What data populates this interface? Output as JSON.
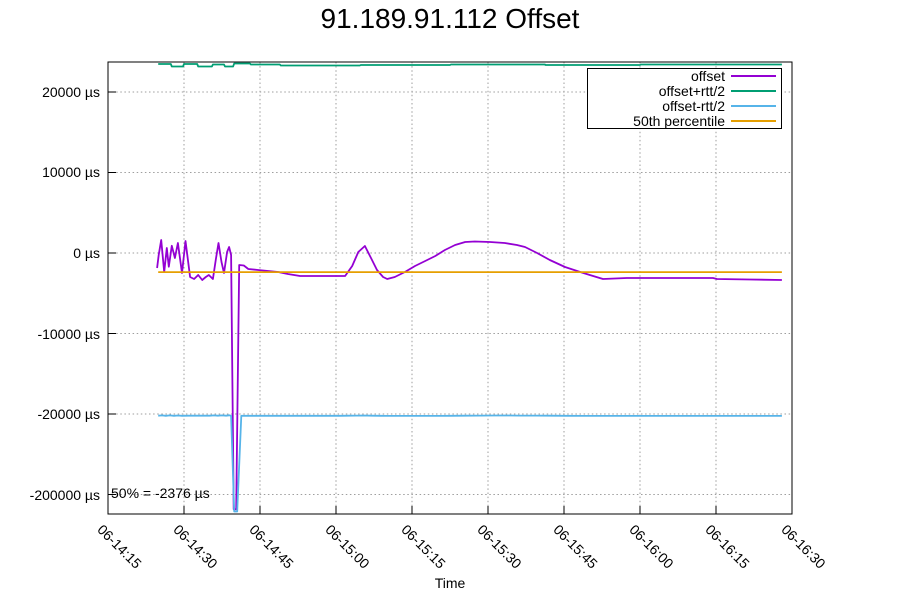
{
  "title": "91.189.91.112 Offset",
  "annotation": "50% = -2376 µs",
  "x_axis_title": "Time",
  "legend": [
    {
      "label": "offset",
      "color": "#9400d3"
    },
    {
      "label": "offset+rtt/2",
      "color": "#009e73"
    },
    {
      "label": "offset-rtt/2",
      "color": "#56b4e9"
    },
    {
      "label": "50th percentile",
      "color": "#e69f00"
    }
  ],
  "colors": {
    "offset": "#9400d3",
    "offset_plus_rtt": "#009e73",
    "offset_minus_rtt": "#56b4e9",
    "percentile": "#e69f00",
    "grid": "#9e9e9e",
    "border": "#000000",
    "background": "#ffffff",
    "text": "#000000"
  },
  "chart_data": {
    "type": "line",
    "title": "91.189.91.112 Offset",
    "xlabel": "Time",
    "ylabel": "",
    "y_unit": "µs",
    "x_unit": "minutes after 06-14:15",
    "grid": true,
    "legend_position": "top-right",
    "annotations": [
      "50% = -2376 µs"
    ],
    "x_ticks": [
      {
        "m": 0,
        "label": "06-14:15"
      },
      {
        "m": 15,
        "label": "06-14:30"
      },
      {
        "m": 30,
        "label": "06-14:45"
      },
      {
        "m": 45,
        "label": "06-15:00"
      },
      {
        "m": 60,
        "label": "06-15:15"
      },
      {
        "m": 75,
        "label": "06-15:30"
      },
      {
        "m": 90,
        "label": "06-15:45"
      },
      {
        "m": 105,
        "label": "06-16:00"
      },
      {
        "m": 120,
        "label": "06-16:15"
      },
      {
        "m": 135,
        "label": "06-16:30"
      }
    ],
    "y_ticks": [
      {
        "v": 20000,
        "label": "20000 µs"
      },
      {
        "v": 10000,
        "label": "10000 µs"
      },
      {
        "v": 0,
        "label": "0 µs"
      },
      {
        "v": -10000,
        "label": "-10000 µs"
      },
      {
        "v": -20000,
        "label": "-20000 µs"
      },
      {
        "v": -200000,
        "label": "-200000 µs"
      }
    ],
    "y_scale_note": "linear from 20000 to -20000 µs, compressed segment from -20000 to -200000 µs at bottom",
    "series": [
      {
        "name": "offset",
        "color": "#9400d3",
        "points": [
          [
            9.7,
            -1860
          ],
          [
            10.0,
            -250
          ],
          [
            10.5,
            1610
          ],
          [
            11.1,
            -2360
          ],
          [
            11.6,
            620
          ],
          [
            12.0,
            -1700
          ],
          [
            12.6,
            900
          ],
          [
            13.2,
            -620
          ],
          [
            13.8,
            1240
          ],
          [
            14.6,
            -2480
          ],
          [
            15.3,
            1490
          ],
          [
            16.2,
            -2980
          ],
          [
            17.0,
            -3230
          ],
          [
            17.8,
            -2730
          ],
          [
            18.6,
            -3350
          ],
          [
            19.3,
            -2980
          ],
          [
            19.9,
            -2730
          ],
          [
            20.7,
            -3230
          ],
          [
            21.3,
            -750
          ],
          [
            21.8,
            1240
          ],
          [
            22.4,
            -1120
          ],
          [
            22.9,
            -2480
          ],
          [
            23.5,
            120
          ],
          [
            23.9,
            750
          ],
          [
            24.3,
            -250
          ],
          [
            24.8,
            -233000
          ],
          [
            25.3,
            -233000
          ],
          [
            25.9,
            -1490
          ],
          [
            26.8,
            -1550
          ],
          [
            27.7,
            -1990
          ],
          [
            29.6,
            -2110
          ],
          [
            31.6,
            -2240
          ],
          [
            33.6,
            -2360
          ],
          [
            35.5,
            -2610
          ],
          [
            37.9,
            -2860
          ],
          [
            41.4,
            -2860
          ],
          [
            46.8,
            -2860
          ],
          [
            48.2,
            -1610
          ],
          [
            49.4,
            130
          ],
          [
            50.7,
            870
          ],
          [
            51.9,
            -620
          ],
          [
            53.1,
            -2110
          ],
          [
            54.3,
            -2980
          ],
          [
            55.1,
            -3230
          ],
          [
            56.6,
            -2980
          ],
          [
            58.6,
            -2360
          ],
          [
            60.6,
            -1610
          ],
          [
            62.6,
            -990
          ],
          [
            64.6,
            -370
          ],
          [
            66.5,
            370
          ],
          [
            68.5,
            990
          ],
          [
            70.5,
            1370
          ],
          [
            72.4,
            1430
          ],
          [
            75.4,
            1370
          ],
          [
            78.3,
            1240
          ],
          [
            80.7,
            990
          ],
          [
            82.3,
            750
          ],
          [
            84.7,
            0
          ],
          [
            87.2,
            -870
          ],
          [
            90.2,
            -1740
          ],
          [
            93.2,
            -2360
          ],
          [
            95.1,
            -2730
          ],
          [
            97.7,
            -3230
          ],
          [
            102.4,
            -3110
          ],
          [
            110.9,
            -3110
          ],
          [
            119.4,
            -3110
          ],
          [
            120.2,
            -3230
          ],
          [
            126.7,
            -3290
          ],
          [
            133.0,
            -3350
          ]
        ]
      },
      {
        "name": "offset+rtt/2",
        "color": "#009e73",
        "points": [
          [
            9.9,
            23480
          ],
          [
            12.4,
            23480
          ],
          [
            12.6,
            23170
          ],
          [
            14.8,
            23170
          ],
          [
            15.0,
            23480
          ],
          [
            17.6,
            23480
          ],
          [
            17.8,
            23170
          ],
          [
            20.5,
            23170
          ],
          [
            20.7,
            23420
          ],
          [
            22.9,
            23420
          ],
          [
            23.1,
            23170
          ],
          [
            24.7,
            23170
          ],
          [
            24.9,
            23540
          ],
          [
            28.0,
            23540
          ],
          [
            28.2,
            23420
          ],
          [
            33.9,
            23420
          ],
          [
            34.1,
            23290
          ],
          [
            49.7,
            23290
          ],
          [
            49.9,
            23350
          ],
          [
            67.5,
            23350
          ],
          [
            67.7,
            23420
          ],
          [
            86.2,
            23420
          ],
          [
            86.4,
            23350
          ],
          [
            105.0,
            23350
          ],
          [
            105.2,
            23420
          ],
          [
            133.0,
            23420
          ]
        ]
      },
      {
        "name": "offset-rtt/2",
        "color": "#56b4e9",
        "points": [
          [
            9.9,
            -23850
          ],
          [
            10.7,
            -23230
          ],
          [
            11.4,
            -24100
          ],
          [
            12.2,
            -23230
          ],
          [
            13.0,
            -24100
          ],
          [
            13.8,
            -23350
          ],
          [
            14.6,
            -23970
          ],
          [
            15.8,
            -23720
          ],
          [
            17.2,
            -23850
          ],
          [
            20.1,
            -23850
          ],
          [
            20.9,
            -23230
          ],
          [
            21.7,
            -23850
          ],
          [
            22.5,
            -23230
          ],
          [
            23.3,
            -23720
          ],
          [
            23.9,
            -22980
          ],
          [
            24.3,
            -23850
          ],
          [
            24.9,
            -238000
          ],
          [
            25.5,
            -238000
          ],
          [
            26.3,
            -23970
          ],
          [
            27.2,
            -24100
          ],
          [
            37.9,
            -24100
          ],
          [
            45.8,
            -24100
          ],
          [
            47.4,
            -23850
          ],
          [
            49.0,
            -23480
          ],
          [
            50.3,
            -23350
          ],
          [
            52.1,
            -23720
          ],
          [
            53.7,
            -24100
          ],
          [
            55.1,
            -24220
          ],
          [
            64.9,
            -24220
          ],
          [
            67.5,
            -24040
          ],
          [
            70.5,
            -23780
          ],
          [
            73.4,
            -23600
          ],
          [
            76.4,
            -23410
          ],
          [
            79.3,
            -23410
          ],
          [
            81.3,
            -23470
          ],
          [
            84.3,
            -23660
          ],
          [
            87.2,
            -23850
          ],
          [
            90.2,
            -24040
          ],
          [
            94.1,
            -24220
          ],
          [
            116.8,
            -24220
          ],
          [
            133.0,
            -24220
          ]
        ]
      },
      {
        "name": "50th percentile",
        "color": "#e69f00",
        "points": [
          [
            9.9,
            -2376
          ],
          [
            133.0,
            -2376
          ]
        ]
      }
    ]
  }
}
